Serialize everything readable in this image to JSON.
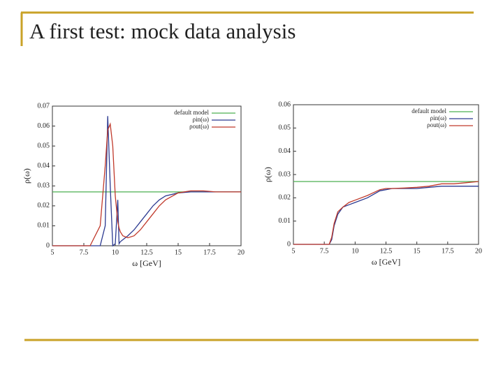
{
  "title": "A first test: mock data analysis",
  "chart_data": [
    {
      "type": "line",
      "xlabel": "ω [GeV]",
      "ylabel": "ρ(ω)",
      "xlim": [
        5,
        20
      ],
      "xticks": [
        5,
        7.5,
        10,
        12.5,
        15,
        17.5,
        20
      ],
      "ylim": [
        0,
        0.07
      ],
      "yticks": [
        0,
        0.01,
        0.02,
        0.03,
        0.04,
        0.05,
        0.06,
        0.07
      ],
      "legend": "upper right",
      "x": [
        5,
        7,
        8,
        8.8,
        9.2,
        9.4,
        9.6,
        9.8,
        10,
        10.2,
        10.3,
        10.4,
        10.6,
        11,
        11.5,
        12,
        12.5,
        13,
        13.5,
        14,
        15,
        16,
        17,
        18,
        20
      ],
      "series": [
        {
          "name": "default model",
          "color": "#4caf50",
          "values": [
            0.027,
            0.027,
            0.027,
            0.027,
            0.027,
            0.027,
            0.027,
            0.027,
            0.027,
            0.027,
            0.027,
            0.027,
            0.027,
            0.027,
            0.027,
            0.027,
            0.027,
            0.027,
            0.027,
            0.027,
            0.027,
            0.027,
            0.027,
            0.027,
            0.027
          ]
        },
        {
          "name": "ρin(ω)",
          "color": "#2b3990",
          "values": [
            0,
            0,
            0,
            0,
            0.01,
            0.065,
            0.03,
            0,
            0.001,
            0.023,
            0.001,
            0.002,
            0.003,
            0.005,
            0.008,
            0.012,
            0.016,
            0.02,
            0.023,
            0.025,
            0.0265,
            0.027,
            0.027,
            0.027,
            0.027
          ]
        },
        {
          "name": "ρout(ω)",
          "color": "#c0392b",
          "values": [
            0,
            0,
            0,
            0.01,
            0.04,
            0.058,
            0.061,
            0.05,
            0.025,
            0.012,
            0.009,
            0.007,
            0.005,
            0.004,
            0.005,
            0.008,
            0.012,
            0.016,
            0.02,
            0.023,
            0.0265,
            0.0275,
            0.0275,
            0.027,
            0.027
          ]
        }
      ]
    },
    {
      "type": "line",
      "xlabel": "ω [GeV]",
      "ylabel": "ρ(ω)",
      "xlim": [
        5,
        20
      ],
      "xticks": [
        5,
        7.5,
        10,
        12.5,
        15,
        17.5,
        20
      ],
      "ylim": [
        0,
        0.06
      ],
      "yticks": [
        0,
        0.01,
        0.02,
        0.03,
        0.04,
        0.05,
        0.06
      ],
      "legend": "upper right",
      "x": [
        5,
        7.5,
        7.9,
        8.1,
        8.3,
        8.6,
        9,
        9.5,
        10,
        11,
        12,
        12.5,
        13,
        14,
        15,
        16,
        17,
        18,
        19,
        20
      ],
      "series": [
        {
          "name": "default model",
          "color": "#4caf50",
          "values": [
            0.027,
            0.027,
            0.027,
            0.027,
            0.027,
            0.027,
            0.027,
            0.027,
            0.027,
            0.027,
            0.027,
            0.027,
            0.027,
            0.027,
            0.027,
            0.027,
            0.027,
            0.027,
            0.027,
            0.027
          ]
        },
        {
          "name": "ρin(ω)",
          "color": "#2b3990",
          "values": [
            0,
            0,
            0,
            0.002,
            0.008,
            0.013,
            0.016,
            0.017,
            0.018,
            0.02,
            0.023,
            0.0235,
            0.024,
            0.024,
            0.024,
            0.0245,
            0.025,
            0.025,
            0.025,
            0.025
          ]
        },
        {
          "name": "ρout(ω)",
          "color": "#c0392b",
          "values": [
            0,
            0,
            0,
            0.003,
            0.009,
            0.014,
            0.016,
            0.018,
            0.019,
            0.021,
            0.0235,
            0.024,
            0.024,
            0.0242,
            0.0245,
            0.025,
            0.026,
            0.026,
            0.0265,
            0.027
          ]
        }
      ]
    }
  ]
}
